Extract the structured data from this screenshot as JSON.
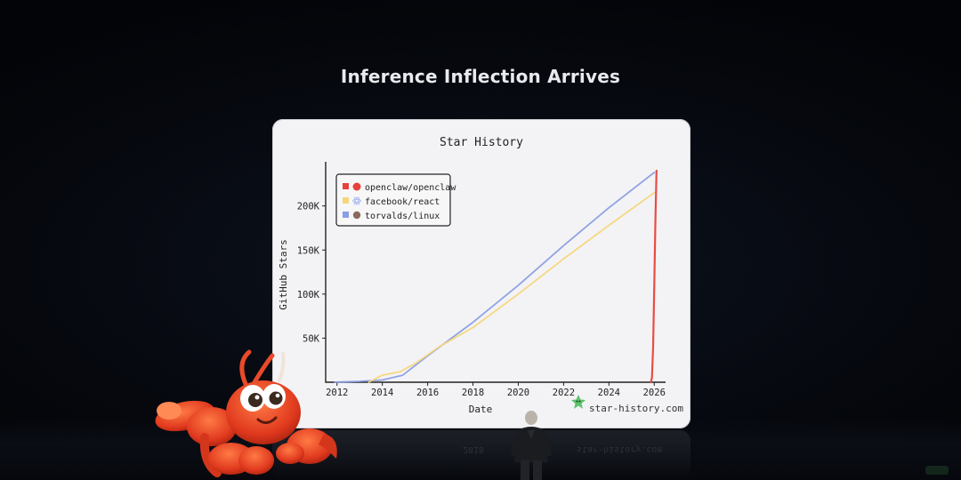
{
  "slide": {
    "title": "Inference Inflection Arrives"
  },
  "chart_data": {
    "type": "line",
    "title": "Star History",
    "xlabel": "Date",
    "ylabel": "GitHub Stars",
    "xlim": [
      2011.5,
      2026.5
    ],
    "ylim": [
      0,
      240000
    ],
    "x_ticks": [
      2012,
      2014,
      2016,
      2018,
      2020,
      2022,
      2024,
      2026
    ],
    "x_tick_labels": [
      "2012",
      "2014",
      "2016",
      "2018",
      "2020",
      "2022",
      "2024",
      "2026"
    ],
    "y_ticks": [
      50000,
      100000,
      150000,
      200000
    ],
    "y_tick_labels": [
      "50K",
      "100K",
      "150K",
      "200K"
    ],
    "legend_position": "top-left",
    "grid": false,
    "watermark": "star-history.com",
    "series": [
      {
        "name": "openclaw/openclaw",
        "color": "#e8423b",
        "x": [
          2025.85,
          2025.9,
          2025.95,
          2026.0,
          2026.05,
          2026.1
        ],
        "y": [
          0,
          5000,
          40000,
          110000,
          180000,
          240000
        ]
      },
      {
        "name": "facebook/react",
        "color": "#f5d67a",
        "x": [
          2013.4,
          2014.0,
          2014.8,
          2015.5,
          2016.5,
          2018.0,
          2020.0,
          2022.0,
          2024.0,
          2026.0
        ],
        "y": [
          0,
          8000,
          12000,
          22000,
          40000,
          62000,
          100000,
          140000,
          178000,
          215000
        ]
      },
      {
        "name": "torvalds/linux",
        "color": "#8a9ee3",
        "x": [
          2011.9,
          2013.0,
          2014.0,
          2014.9,
          2016.0,
          2018.0,
          2020.0,
          2022.0,
          2024.0,
          2026.0
        ],
        "y": [
          0,
          1000,
          2500,
          8000,
          30000,
          68000,
          110000,
          155000,
          198000,
          238000
        ]
      }
    ]
  },
  "legend": {
    "items": [
      {
        "label": "openclaw/openclaw",
        "color": "#e8423b"
      },
      {
        "label": "facebook/react",
        "color": "#f5d67a"
      },
      {
        "label": "torvalds/linux",
        "color": "#8a9ee3"
      }
    ]
  }
}
